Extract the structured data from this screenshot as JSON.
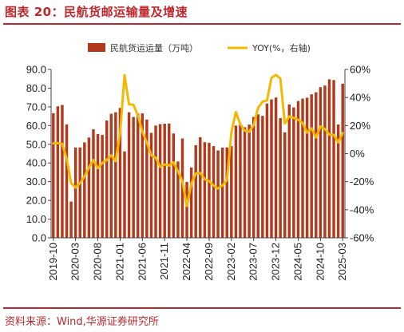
{
  "figure": {
    "title": "图表 20：民航货邮运输量及增速",
    "source": "资料来源：Wind,华源证券研究所"
  },
  "colors": {
    "title_red": "#c0272d",
    "bar": "#b23a1c",
    "line": "#f5b800"
  },
  "chart_data": {
    "type": "bar",
    "grid": false,
    "legend_position": "top-center",
    "x_tick_labels": [
      "2019-10",
      "2020-03",
      "2020-08",
      "2021-01",
      "2021-06",
      "2021-11",
      "2022-04",
      "2022-09",
      "2023-02",
      "2023-07",
      "2023-12",
      "2024-05",
      "2024-10",
      "2025-03"
    ],
    "ylim_left": [
      0,
      90
    ],
    "yticks_left": [
      "0.0",
      "10.0",
      "20.0",
      "30.0",
      "40.0",
      "50.0",
      "60.0",
      "70.0",
      "80.0",
      "90.0"
    ],
    "ylim_right": [
      -60,
      60
    ],
    "yticks_right": [
      "-60%",
      "-40%",
      "-20%",
      "0%",
      "20%",
      "40%",
      "60%"
    ],
    "categories": [
      "2019-10",
      "2019-11",
      "2019-12",
      "2020-01",
      "2020-02",
      "2020-03",
      "2020-04",
      "2020-05",
      "2020-06",
      "2020-07",
      "2020-08",
      "2020-09",
      "2020-10",
      "2020-11",
      "2020-12",
      "2021-01",
      "2021-02",
      "2021-03",
      "2021-04",
      "2021-05",
      "2021-06",
      "2021-07",
      "2021-08",
      "2021-09",
      "2021-10",
      "2021-11",
      "2021-12",
      "2022-01",
      "2022-02",
      "2022-03",
      "2022-04",
      "2022-05",
      "2022-06",
      "2022-07",
      "2022-08",
      "2022-09",
      "2022-10",
      "2022-11",
      "2022-12",
      "2023-01",
      "2023-02",
      "2023-03",
      "2023-04",
      "2023-05",
      "2023-06",
      "2023-07",
      "2023-08",
      "2023-09",
      "2023-10",
      "2023-11",
      "2023-12",
      "2024-01",
      "2024-02",
      "2024-03",
      "2024-04",
      "2024-05",
      "2024-06",
      "2024-07",
      "2024-08",
      "2024-09",
      "2024-10",
      "2024-11",
      "2024-12",
      "2025-01",
      "2025-02",
      "2025-03"
    ],
    "series": [
      {
        "name": "民航货运运量（万吨）",
        "type": "bar",
        "axis": "left",
        "values": [
          66.6,
          70.3,
          71.0,
          60.6,
          19.4,
          48.3,
          48.3,
          51.0,
          53.6,
          58.0,
          55.5,
          55.0,
          62.7,
          66.3,
          67.1,
          69.4,
          46.2,
          67.1,
          64.6,
          66.4,
          66.5,
          63.2,
          56.1,
          60.0,
          60.8,
          61.0,
          61.1,
          55.8,
          40.8,
          53.1,
          29.9,
          37.6,
          49.5,
          53.8,
          51.1,
          50.8,
          49.0,
          46.7,
          48.2,
          48.3,
          49.0,
          60.0,
          60.6,
          59.1,
          60.5,
          64.6,
          66.0,
          65.2,
          71.8,
          74.0,
          75.0,
          64.0,
          56.4,
          71.3,
          69.7,
          73.1,
          74.4,
          74.9,
          76.7,
          77.8,
          80.5,
          81.4,
          84.7,
          84.3,
          60.6,
          82.4
        ]
      },
      {
        "name": "YOY(%，右轴)",
        "type": "line",
        "axis": "right",
        "values": [
          7.3,
          7.5,
          6.9,
          -3.6,
          -21.0,
          -24.1,
          -21.0,
          -16.2,
          -10.0,
          -4.6,
          -10.4,
          -6.7,
          -4.5,
          -1.2,
          -5.4,
          14.6,
          56.0,
          35.1,
          34.8,
          27.1,
          15.7,
          8.0,
          -1.3,
          -2.9,
          -9.4,
          -7.7,
          -8.5,
          -6.2,
          -12.6,
          -19.6,
          -37.3,
          -21.4,
          -14.2,
          -13.8,
          -18.2,
          -19.6,
          -22.8,
          -24.9,
          -22.6,
          -19.0,
          15.2,
          29.6,
          21.0,
          16.3,
          15.6,
          20.3,
          32.7,
          37.0,
          37.9,
          54.0,
          56.1,
          53.5,
          21.5,
          26.5,
          25.5,
          24.1,
          21.9,
          14.9,
          18.0,
          11.5,
          19.4,
          17.5,
          13.5,
          13.4,
          8.0,
          14.7
        ]
      }
    ]
  }
}
